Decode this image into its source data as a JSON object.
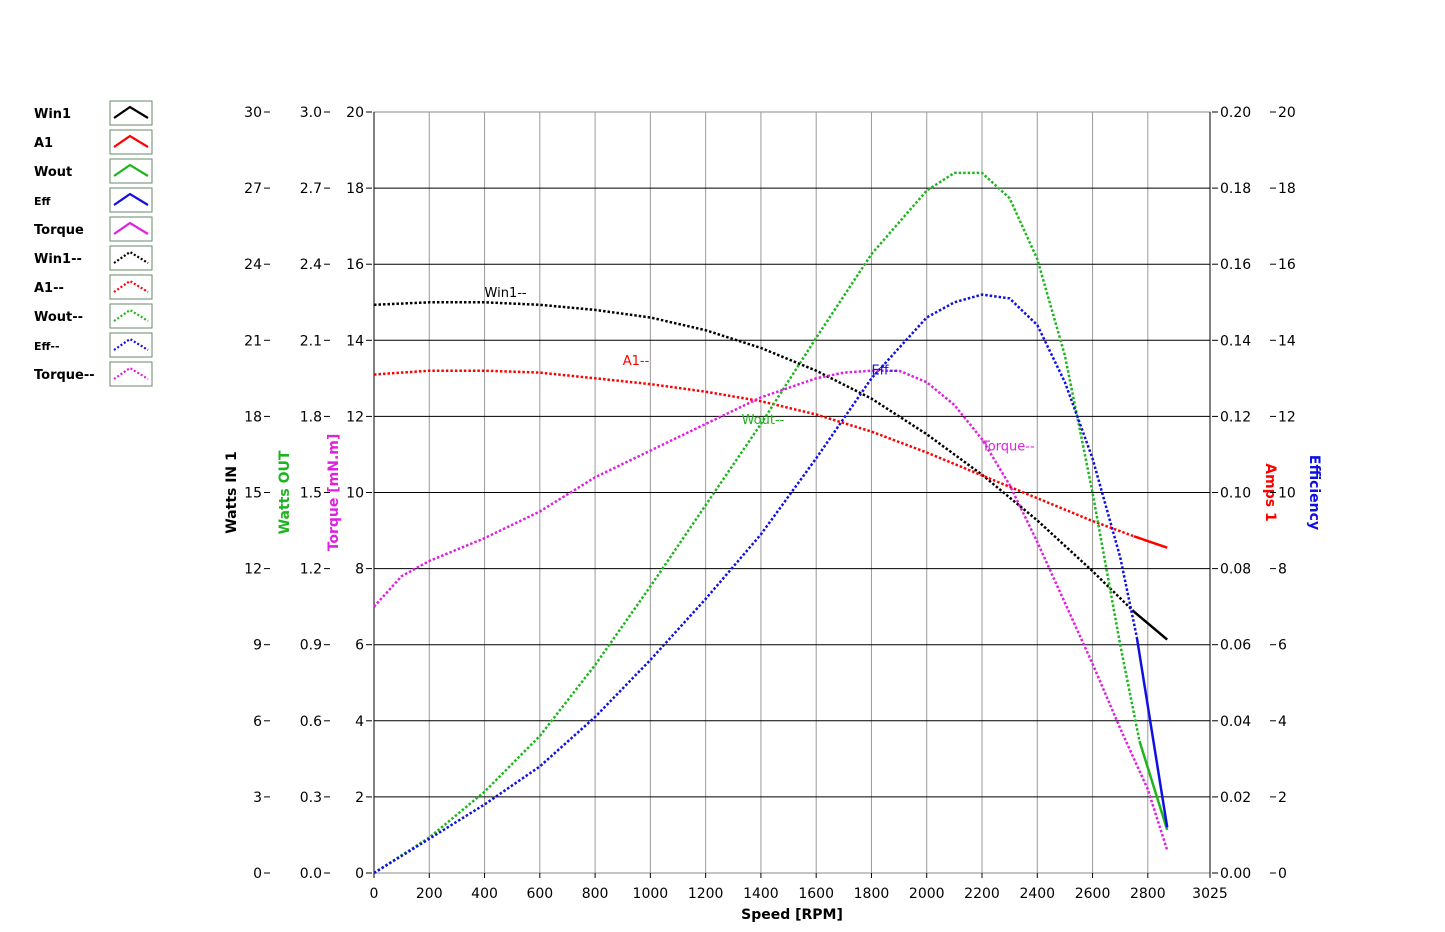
{
  "chart_data": {
    "type": "line",
    "grid": true,
    "legend_placement": "left",
    "x": {
      "label": "Speed [RPM]",
      "ticks": [
        "0",
        "200",
        "400",
        "600",
        "800",
        "1000",
        "1200",
        "1400",
        "1600",
        "1800",
        "2000",
        "2200",
        "2400",
        "2600",
        "2800",
        "3025"
      ],
      "range": [
        0,
        3025
      ]
    },
    "axes": [
      {
        "id": "win",
        "label": "Watts IN 1",
        "color": "#000000",
        "side": "left",
        "range": [
          0,
          30
        ],
        "ticks": [
          "0",
          "3",
          "6",
          "9",
          "12",
          "15",
          "18",
          "21",
          "24",
          "27",
          "30"
        ]
      },
      {
        "id": "wout",
        "label": "Watts OUT",
        "color": "#1fb51f",
        "side": "left",
        "range": [
          0,
          3.0
        ],
        "ticks": [
          "0.0",
          "0.3",
          "0.6",
          "0.9",
          "1.2",
          "1.5",
          "1.8",
          "2.1",
          "2.4",
          "2.7",
          "3.0"
        ]
      },
      {
        "id": "torque",
        "label": "Torque [mN.m]",
        "color": "#e020e0",
        "side": "left",
        "range": [
          0,
          20
        ],
        "ticks": [
          "0",
          "2",
          "4",
          "6",
          "8",
          "10",
          "12",
          "14",
          "16",
          "18",
          "20"
        ]
      },
      {
        "id": "amps",
        "label": "Amps 1",
        "color": "#ff0000",
        "side": "right",
        "range": [
          0,
          0.2
        ],
        "ticks": [
          "0.00",
          "0.02",
          "0.04",
          "0.06",
          "0.08",
          "0.10",
          "0.12",
          "0.14",
          "0.16",
          "0.18",
          "0.20"
        ]
      },
      {
        "id": "eff",
        "label": "Efficiency",
        "color": "#1010e0",
        "side": "right",
        "range": [
          0,
          20
        ],
        "ticks": [
          "0",
          "2",
          "4",
          "6",
          "8",
          "10",
          "12",
          "14",
          "16",
          "18",
          "20"
        ]
      }
    ],
    "legend": [
      {
        "label": "Win1",
        "color": "#000000",
        "style": "solid",
        "small": false
      },
      {
        "label": "A1",
        "color": "#ff0000",
        "style": "solid",
        "small": false
      },
      {
        "label": "Wout",
        "color": "#1fb51f",
        "style": "solid",
        "small": false
      },
      {
        "label": "Eff",
        "color": "#1010e0",
        "style": "solid",
        "small": true
      },
      {
        "label": "Torque",
        "color": "#e020e0",
        "style": "solid",
        "small": false
      },
      {
        "label": "Win1--",
        "color": "#000000",
        "style": "dotted",
        "small": false
      },
      {
        "label": "A1--",
        "color": "#ff0000",
        "style": "dotted",
        "small": false
      },
      {
        "label": "Wout--",
        "color": "#1fb51f",
        "style": "dotted",
        "small": false
      },
      {
        "label": "Eff--",
        "color": "#1010e0",
        "style": "dotted",
        "small": true
      },
      {
        "label": "Torque--",
        "color": "#e020e0",
        "style": "dotted",
        "small": false
      }
    ],
    "series": [
      {
        "name": "Win1--",
        "axis": "win",
        "color": "#000000",
        "style": "dotted",
        "x": [
          0,
          200,
          400,
          600,
          800,
          1000,
          1200,
          1400,
          1600,
          1800,
          2000,
          2200,
          2400,
          2600,
          2750
        ],
        "y": [
          22.4,
          22.5,
          22.5,
          22.4,
          22.2,
          21.9,
          21.4,
          20.7,
          19.8,
          18.7,
          17.3,
          15.7,
          13.9,
          11.9,
          10.3
        ]
      },
      {
        "name": "Win1",
        "axis": "win",
        "color": "#000000",
        "style": "solid",
        "x": [
          2750,
          2870
        ],
        "y": [
          10.3,
          9.2
        ]
      },
      {
        "name": "A1--",
        "axis": "amps",
        "color": "#ff0000",
        "style": "dotted",
        "x": [
          0,
          200,
          400,
          600,
          800,
          1000,
          1200,
          1400,
          1600,
          1800,
          2000,
          2200,
          2400,
          2600,
          2750
        ],
        "y": [
          0.131,
          0.132,
          0.132,
          0.1315,
          0.13,
          0.1285,
          0.1265,
          0.124,
          0.1205,
          0.116,
          0.1105,
          0.1045,
          0.0985,
          0.0925,
          0.0885
        ]
      },
      {
        "name": "A1",
        "axis": "amps",
        "color": "#ff0000",
        "style": "solid",
        "x": [
          2750,
          2870
        ],
        "y": [
          0.0885,
          0.0855
        ]
      },
      {
        "name": "Wout--",
        "axis": "wout",
        "color": "#1fb51f",
        "style": "dotted",
        "x": [
          0,
          200,
          400,
          600,
          800,
          1000,
          1200,
          1400,
          1600,
          1800,
          2000,
          2100,
          2200,
          2300,
          2400,
          2500,
          2600,
          2700,
          2770
        ],
        "y": [
          0.0,
          0.14,
          0.32,
          0.54,
          0.82,
          1.13,
          1.45,
          1.77,
          2.11,
          2.44,
          2.69,
          2.76,
          2.76,
          2.66,
          2.42,
          2.04,
          1.5,
          0.9,
          0.52
        ]
      },
      {
        "name": "Wout",
        "axis": "wout",
        "color": "#1fb51f",
        "style": "solid",
        "x": [
          2770,
          2870
        ],
        "y": [
          0.52,
          0.17
        ]
      },
      {
        "name": "Eff--",
        "axis": "eff",
        "color": "#1010e0",
        "style": "dotted",
        "x": [
          0,
          200,
          400,
          600,
          800,
          1000,
          1200,
          1400,
          1600,
          1800,
          2000,
          2100,
          2200,
          2300,
          2400,
          2500,
          2600,
          2700,
          2760
        ],
        "y": [
          0.0,
          0.9,
          1.8,
          2.8,
          4.1,
          5.6,
          7.2,
          8.9,
          10.9,
          13.0,
          14.6,
          15.0,
          15.2,
          15.1,
          14.4,
          12.9,
          10.9,
          8.3,
          6.2
        ]
      },
      {
        "name": "Eff",
        "axis": "eff",
        "color": "#1010e0",
        "style": "solid",
        "x": [
          2760,
          2870
        ],
        "y": [
          6.2,
          1.2
        ]
      },
      {
        "name": "Torque--",
        "axis": "torque",
        "color": "#e020e0",
        "style": "dotted",
        "x": [
          0,
          100,
          200,
          400,
          600,
          800,
          1000,
          1200,
          1400,
          1600,
          1700,
          1800,
          1900,
          2000,
          2100,
          2200,
          2300,
          2400,
          2500,
          2600,
          2700,
          2800,
          2870
        ],
        "y": [
          7.0,
          7.8,
          8.2,
          8.8,
          9.5,
          10.4,
          11.1,
          11.8,
          12.5,
          13.0,
          13.15,
          13.2,
          13.2,
          12.9,
          12.3,
          11.4,
          10.2,
          8.7,
          7.1,
          5.5,
          3.8,
          2.2,
          0.6
        ]
      }
    ],
    "annotations": [
      {
        "text": "Win1--",
        "color": "#000000",
        "x": 400,
        "axis": "win",
        "y": 22.7
      },
      {
        "text": "A1--",
        "color": "#ff0000",
        "x": 900,
        "axis": "amps",
        "y": 0.1335
      },
      {
        "text": "Eff--",
        "color": "#1010e0",
        "x": 1800,
        "axis": "eff",
        "y": 13.1
      },
      {
        "text": "Wout--",
        "color": "#1fb51f",
        "x": 1330,
        "axis": "wout",
        "y": 1.77
      },
      {
        "text": "Torque--",
        "color": "#e020e0",
        "x": 2200,
        "axis": "torque",
        "y": 11.1
      }
    ]
  }
}
